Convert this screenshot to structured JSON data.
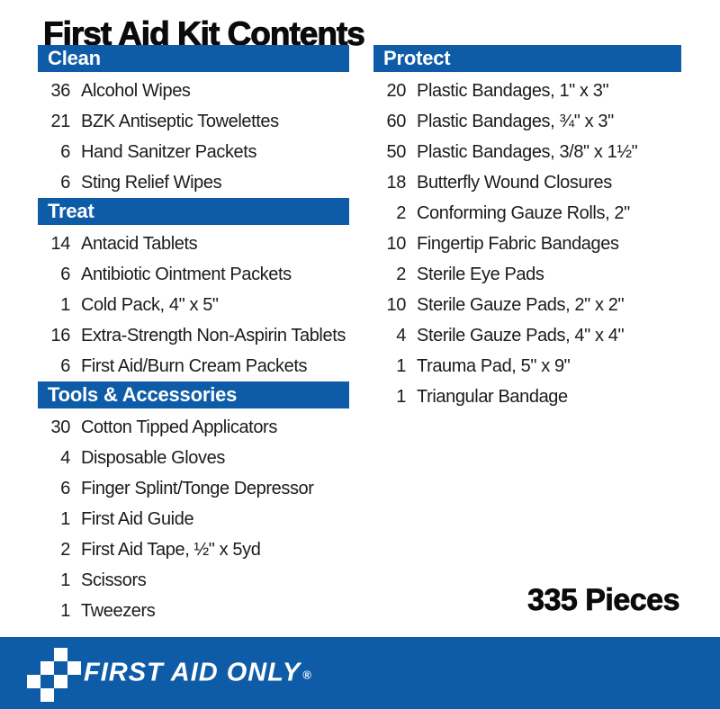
{
  "title": "First Aid Kit Contents",
  "total": "335 Pieces",
  "colors": {
    "brand_blue": "#0e5ca8",
    "bar_text": "#ffffff",
    "item_text": "#1b1b1b",
    "title_text": "#0b0b0b"
  },
  "columns": [
    {
      "id": "left",
      "sections": [
        {
          "header": "Clean",
          "items": [
            {
              "qty": "36",
              "label": "Alcohol Wipes"
            },
            {
              "qty": "21",
              "label": "BZK Antiseptic Towelettes"
            },
            {
              "qty": "6",
              "label": "Hand Sanitzer Packets"
            },
            {
              "qty": "6",
              "label": "Sting Relief Wipes"
            }
          ]
        },
        {
          "header": "Treat",
          "items": [
            {
              "qty": "14",
              "label": "Antacid Tablets"
            },
            {
              "qty": "6",
              "label": "Antibiotic Ointment Packets"
            },
            {
              "qty": "1",
              "label": "Cold Pack, 4\" x 5\""
            },
            {
              "qty": "16",
              "label": "Extra-Strength Non-Aspirin Tablets"
            },
            {
              "qty": "6",
              "label": "First Aid/Burn Cream Packets"
            }
          ]
        },
        {
          "header": "Tools & Accessories",
          "items": [
            {
              "qty": "30",
              "label": "Cotton Tipped Applicators"
            },
            {
              "qty": "4",
              "label": "Disposable Gloves"
            },
            {
              "qty": "6",
              "label": "Finger Splint/Tonge Depressor"
            },
            {
              "qty": "1",
              "label": "First Aid Guide"
            },
            {
              "qty": "2",
              "label": "First Aid Tape, ½\" x 5yd"
            },
            {
              "qty": "1",
              "label": "Scissors"
            },
            {
              "qty": "1",
              "label": "Tweezers"
            }
          ]
        }
      ]
    },
    {
      "id": "right",
      "sections": [
        {
          "header": "Protect",
          "items": [
            {
              "qty": "20",
              "label": "Plastic Bandages, 1\" x 3\""
            },
            {
              "qty": "60",
              "label": "Plastic Bandages, ¾\" x 3\""
            },
            {
              "qty": "50",
              "label": "Plastic Bandages, 3/8\" x 1½\""
            },
            {
              "qty": "18",
              "label": "Butterfly Wound Closures"
            },
            {
              "qty": "2",
              "label": "Conforming Gauze Rolls, 2\""
            },
            {
              "qty": "10",
              "label": "Fingertip Fabric Bandages"
            },
            {
              "qty": "2",
              "label": "Sterile Eye Pads"
            },
            {
              "qty": "10",
              "label": "Sterile Gauze Pads, 2\" x 2\""
            },
            {
              "qty": "4",
              "label": "Sterile Gauze Pads, 4\" x 4\""
            },
            {
              "qty": "1",
              "label": "Trauma Pad, 5\" x 9\""
            },
            {
              "qty": "1",
              "label": "Triangular Bandage"
            }
          ]
        }
      ]
    }
  ],
  "footer": {
    "brand": "FIRST AID ONLY",
    "registered": "®",
    "logo_icon": "checkered-cross-icon"
  }
}
